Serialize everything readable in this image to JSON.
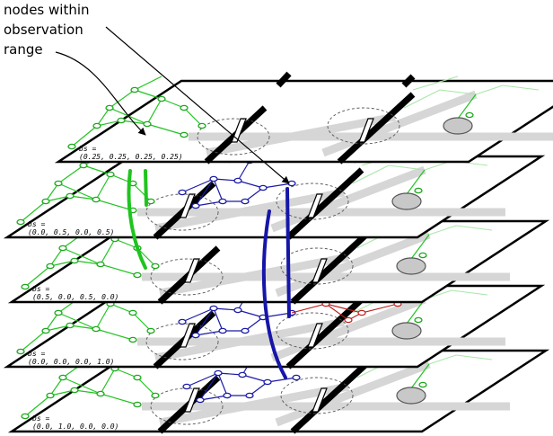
{
  "callouts": {
    "nodes_label_line1": "nodes within",
    "nodes_label_line2": "observation",
    "range_label": "range"
  },
  "layers": [
    {
      "bs_prefix": "bs =",
      "bs_value": "(0.0, 1.0, 0.0, 0.0)"
    },
    {
      "bs_prefix": "bs =",
      "bs_value": "(0.0, 0.0, 0.0, 1.0)"
    },
    {
      "bs_prefix": "bs =",
      "bs_value": "(0.5, 0.0, 0.5, 0.0)"
    },
    {
      "bs_prefix": "bs =",
      "bs_value": "(0.0, 0.5, 0.0, 0.5)"
    },
    {
      "bs_prefix": "bs =",
      "bs_value": "(0.25, 0.25, 0.25, 0.25)"
    }
  ],
  "colors": {
    "topological_graph": "#22c422",
    "planned_path": "#1a1aa8",
    "alternate_path": "#c01a1a",
    "goal_region": "#c8c8c8"
  }
}
